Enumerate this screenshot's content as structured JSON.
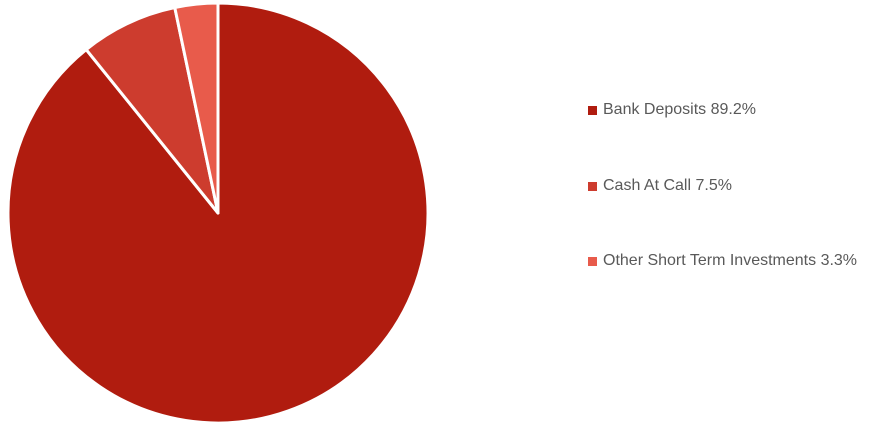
{
  "chart_data": {
    "type": "pie",
    "title": "",
    "start_angle_deg": 0,
    "direction": "clockwise",
    "legend_position": "right",
    "slices": [
      {
        "label": "Bank Deposits 89.2%",
        "value": 89.2,
        "color": "#b01c0f"
      },
      {
        "label": "Cash At Call 7.5%",
        "value": 7.5,
        "color": "#cd3c2e"
      },
      {
        "label": "Other Short Term Investments 3.3%",
        "value": 3.3,
        "color": "#e85b4b"
      }
    ]
  }
}
